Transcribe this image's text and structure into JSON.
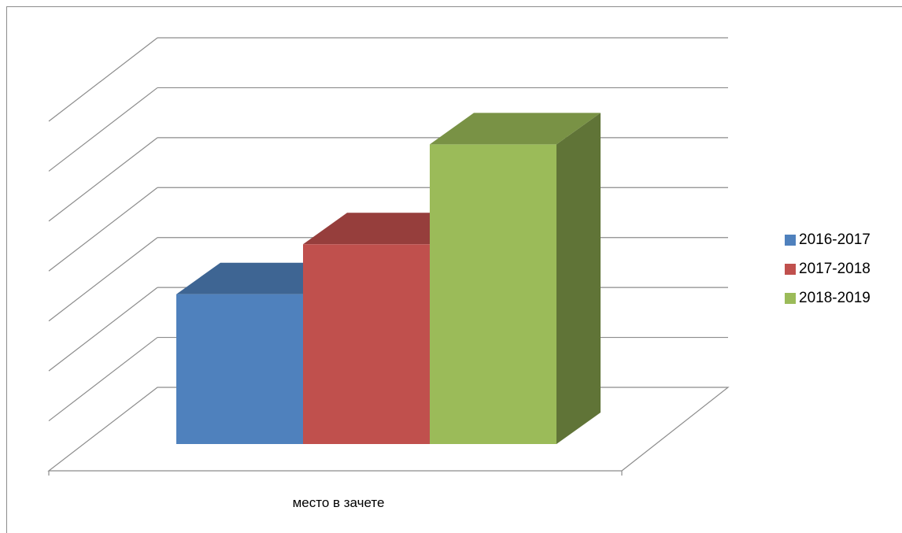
{
  "chart_data": {
    "type": "bar",
    "categories": [
      "место в зачете"
    ],
    "series": [
      {
        "name": "2016-2017",
        "values": [
          3
        ],
        "color": "#4F81BD"
      },
      {
        "name": "2017-2018",
        "values": [
          4
        ],
        "color": "#C0504D"
      },
      {
        "name": "2018-2019",
        "values": [
          6
        ],
        "color": "#9BBB59"
      }
    ],
    "ylim": [
      0,
      7
    ],
    "grid": true,
    "legend": "right",
    "style": "3d-clustered-column"
  }
}
